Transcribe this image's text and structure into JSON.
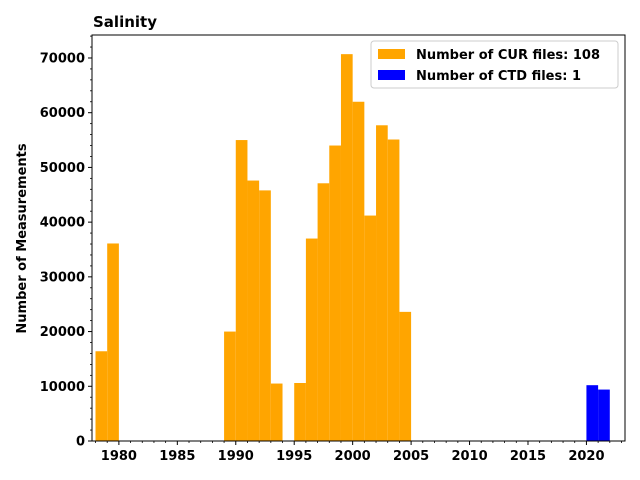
{
  "chart_data": {
    "type": "bar",
    "title": "Salinity",
    "xlabel": "",
    "ylabel": "Number of Measurements",
    "xlim": [
      1977.7,
      2023.3
    ],
    "ylim": [
      0,
      74200
    ],
    "x_ticks": [
      1980,
      1985,
      1990,
      1995,
      2000,
      2005,
      2010,
      2015,
      2020
    ],
    "y_ticks": [
      0,
      10000,
      20000,
      30000,
      40000,
      50000,
      60000,
      70000
    ],
    "bar_width_years": 1,
    "legend_position": "top-right",
    "grid": false,
    "series": [
      {
        "name": "Number of CUR files: 108",
        "color": "#ffa500",
        "points": [
          {
            "x": 1979,
            "y": 16400
          },
          {
            "x": 1980,
            "y": 36100
          },
          {
            "x": 1990,
            "y": 20000
          },
          {
            "x": 1991,
            "y": 55000
          },
          {
            "x": 1992,
            "y": 47600
          },
          {
            "x": 1993,
            "y": 45800
          },
          {
            "x": 1994,
            "y": 10500
          },
          {
            "x": 1996,
            "y": 10600
          },
          {
            "x": 1997,
            "y": 37000
          },
          {
            "x": 1998,
            "y": 47100
          },
          {
            "x": 1999,
            "y": 54000
          },
          {
            "x": 2000,
            "y": 70700
          },
          {
            "x": 2001,
            "y": 62000
          },
          {
            "x": 2002,
            "y": 41200
          },
          {
            "x": 2003,
            "y": 57700
          },
          {
            "x": 2004,
            "y": 55100
          },
          {
            "x": 2005,
            "y": 23600
          }
        ]
      },
      {
        "name": "Number of CTD files: 1",
        "color": "#0000ff",
        "points": [
          {
            "x": 2021,
            "y": 10200
          },
          {
            "x": 2022,
            "y": 9400
          }
        ]
      }
    ]
  }
}
